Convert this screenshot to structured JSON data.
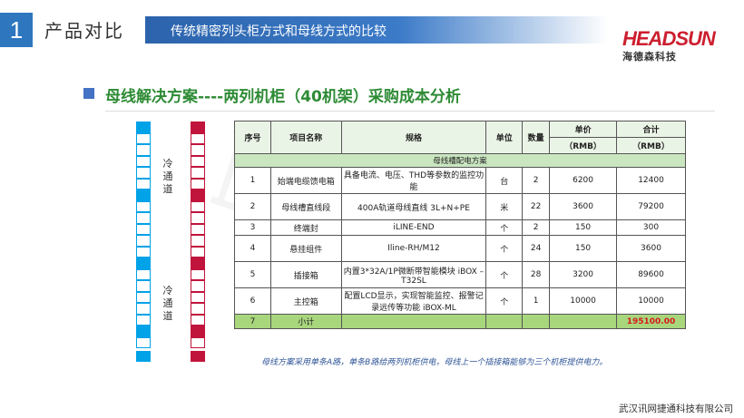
{
  "header": {
    "section_number": "1",
    "section_title": "产品对比",
    "banner_text": "传统精密列头柜方式和母线方式的比较"
  },
  "logo": {
    "brand": "HEADSUN",
    "chinese_name": "海德森科技"
  },
  "subhead": "母线解决方案----两列机柜（40机架）采购成本分析",
  "aisle_labels": [
    "冷通道",
    "冷通道"
  ],
  "colors": {
    "blue_rack": "#00a2e8",
    "red_rack": "#c0143c",
    "accent_green": "#2e8b35",
    "total_red": "#d7191c"
  },
  "table": {
    "caption": "母线槽配电方案",
    "headers": {
      "index": "序号",
      "item": "项目名称",
      "spec": "规格",
      "unit": "单位",
      "qty": "数量",
      "unit_price": "单价",
      "total": "合计",
      "unit_price_sub": "（RMB）",
      "total_sub": "（RMB）"
    },
    "rows": [
      {
        "index": "1",
        "item": "始端电缆馈电箱",
        "spec": "具备电流、电压、THD等参数的监控功能",
        "unit": "台",
        "qty": "2",
        "price": "6200",
        "total": "12400"
      },
      {
        "index": "2",
        "item": "母线槽直线段",
        "spec": "400A轨道母线直线 3L+N+PE",
        "unit": "米",
        "qty": "22",
        "price": "3600",
        "total": "79200"
      },
      {
        "index": "3",
        "item": "终端封",
        "spec": "iLINE-END",
        "unit": "个",
        "qty": "2",
        "price": "150",
        "total": "300"
      },
      {
        "index": "4",
        "item": "悬挂组件",
        "spec": "Iline-RH/M12",
        "unit": "个",
        "qty": "24",
        "price": "150",
        "total": "3600"
      },
      {
        "index": "5",
        "item": "插接箱",
        "spec": "内置3*32A/1P微断带智能模块 iBOX –T32SL",
        "unit": "个",
        "qty": "28",
        "price": "3200",
        "total": "89600"
      },
      {
        "index": "6",
        "item": "主控箱",
        "spec": "配置LCD显示，实现智能监控、报警记录远传等功能 iBOX-ML",
        "unit": "个",
        "qty": "1",
        "price": "10000",
        "total": "10000"
      }
    ],
    "footer": {
      "index": "7",
      "label": "小计",
      "total": "195100.00"
    }
  },
  "note": "母线方案采用单条A路，单条B路给两列机柜供电，母线上一个插接箱能够为三个机柜提供电力。",
  "company": "武汉讯网捷通科技有限公司"
}
